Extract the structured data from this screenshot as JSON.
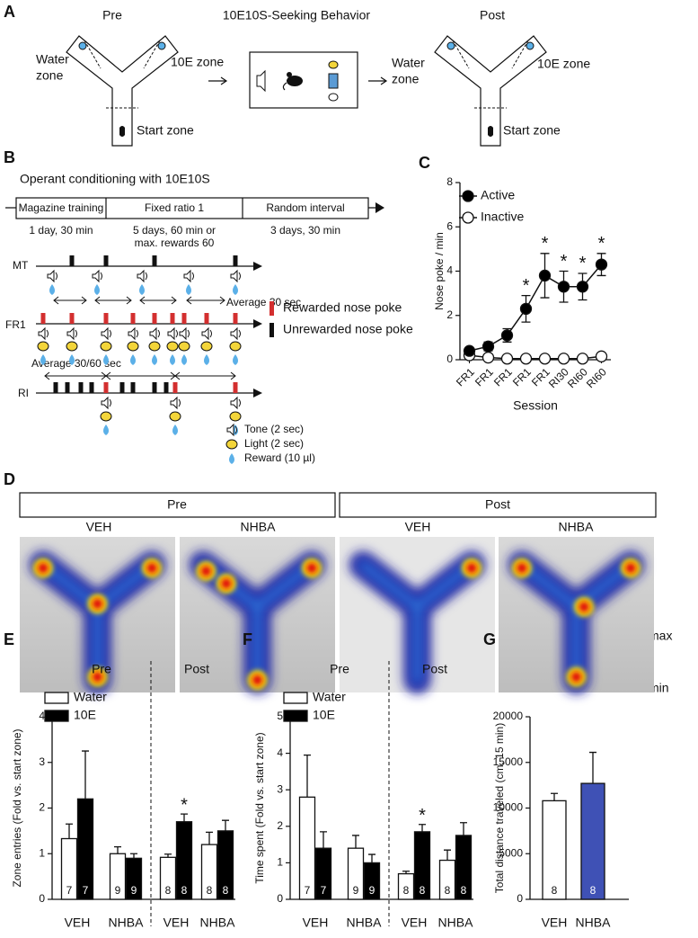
{
  "figure": {
    "A": {
      "letter": "A",
      "pre": "Pre",
      "title": "10E10S-Seeking Behavior",
      "post": "Post",
      "water_zone": [
        "Water",
        "zone"
      ],
      "e_zone": "10E zone",
      "start_zone": "Start zone"
    },
    "B": {
      "letter": "B",
      "title": "Operant conditioning with 10E10S",
      "phases": [
        "Magazine training",
        "Fixed ratio 1",
        "Random interval"
      ],
      "durations": [
        [
          "1 day, 30 min"
        ],
        [
          "5 days, 60 min or",
          "max. rewards 60"
        ],
        [
          "3 days, 30 min"
        ]
      ],
      "rows": [
        "MT",
        "FR1",
        "RI"
      ],
      "average_mt": "Average 30 sec",
      "average_ri": "Average 30/60 sec",
      "legend": [
        "Rewarded nose poke",
        "Unrewarded nose poke"
      ],
      "cues": [
        "Tone (2 sec)",
        "Light (2 sec)",
        "Reward (10 µl)"
      ]
    },
    "D": {
      "letter": "D",
      "groups": [
        "Pre",
        "Post"
      ],
      "conditions": [
        "VEH",
        "NHBA",
        "VEH",
        "NHBA"
      ],
      "scale": [
        "max",
        "min"
      ]
    }
  },
  "chart_data": [
    {
      "type": "line",
      "panel": "C",
      "y_label": "Nose poke / min",
      "x_label": "Session",
      "categories": [
        "FR1",
        "FR1",
        "FR1",
        "FR1",
        "FR1",
        "RI30",
        "RI60",
        "RI60"
      ],
      "ylim": [
        0,
        8
      ],
      "yticks": [
        0,
        2,
        4,
        6,
        8
      ],
      "series": [
        {
          "name": "Active",
          "color": "#000000",
          "values": [
            0.4,
            0.6,
            1.1,
            2.3,
            3.8,
            3.3,
            3.3,
            4.3
          ],
          "errors": [
            0.1,
            0.2,
            0.3,
            0.6,
            1.0,
            0.7,
            0.6,
            0.5
          ]
        },
        {
          "name": "Inactive",
          "color": "#ffffff",
          "values": [
            0.2,
            0.1,
            0.05,
            0.05,
            0.05,
            0.05,
            0.05,
            0.15
          ],
          "errors": [
            0.05,
            0.05,
            0.05,
            0.05,
            0.05,
            0.05,
            0.05,
            0.05
          ]
        }
      ],
      "annotations": [
        {
          "category": 3,
          "text": "*"
        },
        {
          "category": 4,
          "text": "*"
        },
        {
          "category": 5,
          "text": "*"
        },
        {
          "category": 6,
          "text": "*"
        },
        {
          "category": 7,
          "text": "*"
        }
      ]
    },
    {
      "type": "bar",
      "panel": "E",
      "y_label": "Zone entries (Fold vs. start zone)",
      "groups": [
        "Pre",
        "Post"
      ],
      "categories": [
        "VEH",
        "NHBA",
        "VEH",
        "NHBA"
      ],
      "ylim": [
        0,
        4
      ],
      "yticks": [
        0,
        1,
        2,
        3,
        4
      ],
      "series": [
        {
          "name": "Water",
          "color": "#ffffff",
          "values": [
            1.33,
            1.0,
            0.92,
            1.2
          ],
          "errors": [
            0.32,
            0.15,
            0.07,
            0.27
          ],
          "n": [
            7,
            9,
            8,
            8
          ]
        },
        {
          "name": "10E",
          "color": "#000000",
          "values": [
            2.2,
            0.9,
            1.7,
            1.5
          ],
          "errors": [
            1.05,
            0.1,
            0.17,
            0.23
          ],
          "n": [
            7,
            9,
            8,
            8
          ]
        }
      ],
      "annotations": [
        {
          "category": 2,
          "series": 1,
          "text": "*"
        }
      ]
    },
    {
      "type": "bar",
      "panel": "F",
      "y_label": "Time spent (Fold vs. start zone)",
      "groups": [
        "Pre",
        "Post"
      ],
      "categories": [
        "VEH",
        "NHBA",
        "VEH",
        "NHBA"
      ],
      "ylim": [
        0,
        5
      ],
      "yticks": [
        0,
        1,
        2,
        3,
        4,
        5
      ],
      "series": [
        {
          "name": "Water",
          "color": "#ffffff",
          "values": [
            2.8,
            1.4,
            0.7,
            1.07
          ],
          "errors": [
            1.15,
            0.35,
            0.07,
            0.28
          ],
          "n": [
            7,
            9,
            8,
            8
          ]
        },
        {
          "name": "10E",
          "color": "#000000",
          "values": [
            1.4,
            1.0,
            1.85,
            1.75
          ],
          "errors": [
            0.45,
            0.23,
            0.2,
            0.35
          ],
          "n": [
            7,
            9,
            8,
            8
          ]
        }
      ],
      "annotations": [
        {
          "category": 2,
          "series": 1,
          "text": "*"
        }
      ]
    },
    {
      "type": "bar",
      "panel": "G",
      "y_label": "Total distance traveled (cm, 15 min)",
      "categories": [
        "VEH",
        "NHBA"
      ],
      "ylim": [
        0,
        20000
      ],
      "yticks": [
        0,
        5000,
        10000,
        15000,
        20000
      ],
      "series": [
        {
          "colors": [
            "#ffffff",
            "#3f51b5"
          ],
          "values": [
            10800,
            12700
          ],
          "errors": [
            800,
            3400
          ],
          "n": [
            8,
            8
          ]
        }
      ]
    }
  ]
}
